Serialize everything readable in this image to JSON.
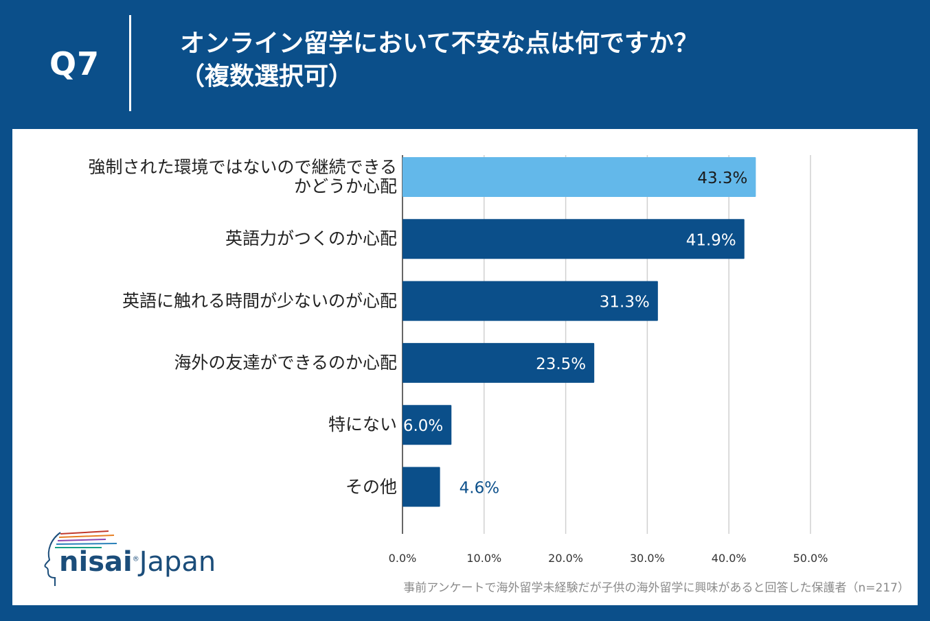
{
  "header": {
    "qnum": "Q7",
    "title_line1": "オンライン留学において不安な点は何ですか？",
    "title_line2": "（複数選択可）"
  },
  "colors": {
    "background": "#0b4f8a",
    "bar_primary": "#0b4f8a",
    "bar_highlight": "#63b8ea",
    "gridline": "#d0d0d0"
  },
  "chart_data": {
    "type": "bar",
    "orientation": "horizontal",
    "categories": [
      "強制された環境ではないので継続できるかどうか心配",
      "英語力がつくのか心配",
      "英語に触れる時間が少ないのが心配",
      "海外の友達ができるのか心配",
      "特にない",
      "その他"
    ],
    "category_lines": [
      [
        "強制された環境ではないので継続できる",
        "かどうか心配"
      ],
      [
        "英語力がつくのか心配"
      ],
      [
        "英語に触れる時間が少ないのが心配"
      ],
      [
        "海外の友達ができるのか心配"
      ],
      [
        "特にない"
      ],
      [
        "その他"
      ]
    ],
    "values": [
      43.3,
      41.9,
      31.3,
      23.5,
      6.0,
      4.6
    ],
    "value_labels": [
      "43.3%",
      "41.9%",
      "31.3%",
      "23.5%",
      "6.0%",
      "4.6%"
    ],
    "highlight_index": 0,
    "xlim": [
      0,
      50
    ],
    "ticks": [
      0,
      10,
      20,
      30,
      40,
      50
    ],
    "tick_labels": [
      "0.0%",
      "10.0%",
      "20.0%",
      "30.0%",
      "40.0%",
      "50.0%"
    ],
    "grid": true,
    "legend": "none"
  },
  "logo": {
    "brand_bold": "nisai",
    "brand_regular": "Japan",
    "mark": "®"
  },
  "footnote": "事前アンケートで海外留学未経験だが子供の海外留学に興味があると回答した保護者（n=217）"
}
